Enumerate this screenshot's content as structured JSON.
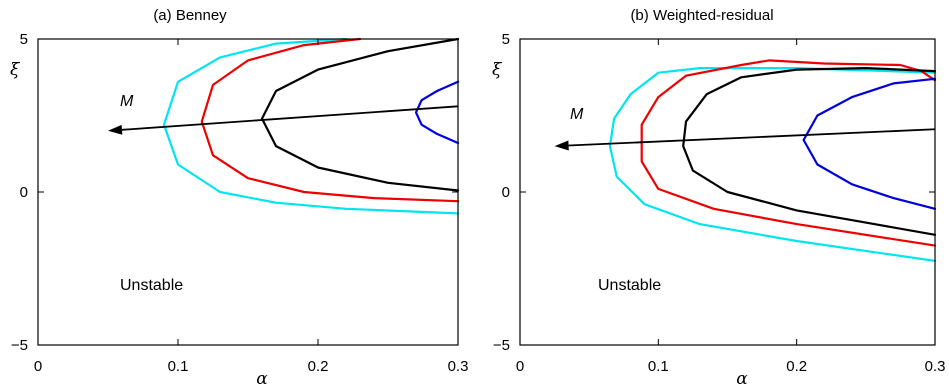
{
  "chart_data": [
    {
      "panel": "a",
      "type": "line",
      "title": "(a) Benney",
      "xlabel": "α",
      "ylabel": "ξ",
      "xlim": [
        0,
        0.3
      ],
      "ylim": [
        -5,
        5
      ],
      "xticks": [
        0,
        0.1,
        0.2,
        0.3
      ],
      "xtick_labels": [
        "0",
        "0.1",
        "0.2",
        "0.3"
      ],
      "yticks": [
        -5,
        0,
        5
      ],
      "ytick_labels": [
        "−5",
        "0",
        "5"
      ],
      "grid": false,
      "region_label": "Unstable",
      "arrow": {
        "label": "M",
        "from": [
          0.3,
          2.8
        ],
        "to": [
          0.05,
          2.0
        ]
      },
      "series": [
        {
          "color": "#00e5ee",
          "points": [
            [
              0.22,
              5.0
            ],
            [
              0.17,
              4.85
            ],
            [
              0.13,
              4.4
            ],
            [
              0.1,
              3.6
            ],
            [
              0.09,
              2.2
            ],
            [
              0.1,
              0.9
            ],
            [
              0.13,
              0.0
            ],
            [
              0.17,
              -0.35
            ],
            [
              0.22,
              -0.55
            ],
            [
              0.3,
              -0.7
            ]
          ]
        },
        {
          "color": "#ee0000",
          "points": [
            [
              0.23,
              5.0
            ],
            [
              0.19,
              4.8
            ],
            [
              0.15,
              4.3
            ],
            [
              0.125,
              3.5
            ],
            [
              0.117,
              2.3
            ],
            [
              0.125,
              1.2
            ],
            [
              0.15,
              0.45
            ],
            [
              0.19,
              0.0
            ],
            [
              0.24,
              -0.2
            ],
            [
              0.3,
              -0.3
            ]
          ]
        },
        {
          "color": "#000000",
          "points": [
            [
              0.3,
              5.0
            ],
            [
              0.25,
              4.6
            ],
            [
              0.2,
              4.0
            ],
            [
              0.17,
              3.3
            ],
            [
              0.16,
              2.4
            ],
            [
              0.17,
              1.5
            ],
            [
              0.2,
              0.8
            ],
            [
              0.25,
              0.3
            ],
            [
              0.3,
              0.05
            ]
          ]
        },
        {
          "color": "#0000dd",
          "points": [
            [
              0.3,
              3.6
            ],
            [
              0.285,
              3.3
            ],
            [
              0.274,
              3.0
            ],
            [
              0.27,
              2.6
            ],
            [
              0.274,
              2.2
            ],
            [
              0.285,
              1.9
            ],
            [
              0.3,
              1.6
            ]
          ]
        }
      ]
    },
    {
      "panel": "b",
      "type": "line",
      "title": "(b) Weighted-residual",
      "xlabel": "α",
      "ylabel": "ξ",
      "xlim": [
        0,
        0.3
      ],
      "ylim": [
        -5,
        5
      ],
      "xticks": [
        0,
        0.1,
        0.2,
        0.3
      ],
      "xtick_labels": [
        "0",
        "0.1",
        "0.2",
        "0.3"
      ],
      "yticks": [
        -5,
        0,
        5
      ],
      "ytick_labels": [
        "−5",
        "0",
        "5"
      ],
      "grid": false,
      "region_label": "Unstable",
      "arrow": {
        "label": "M",
        "from": [
          0.3,
          2.05
        ],
        "to": [
          0.025,
          1.5
        ]
      },
      "series": [
        {
          "color": "#00e5ee",
          "points": [
            [
              0.3,
              3.9
            ],
            [
              0.2,
              4.05
            ],
            [
              0.13,
              4.05
            ],
            [
              0.1,
              3.9
            ],
            [
              0.08,
              3.2
            ],
            [
              0.068,
              2.4
            ],
            [
              0.065,
              1.5
            ],
            [
              0.07,
              0.5
            ],
            [
              0.09,
              -0.4
            ],
            [
              0.13,
              -1.05
            ],
            [
              0.2,
              -1.6
            ],
            [
              0.3,
              -2.25
            ]
          ]
        },
        {
          "color": "#ee0000",
          "points": [
            [
              0.3,
              3.65
            ],
            [
              0.29,
              3.95
            ],
            [
              0.275,
              4.15
            ],
            [
              0.22,
              4.2
            ],
            [
              0.18,
              4.3
            ],
            [
              0.16,
              4.15
            ],
            [
              0.12,
              3.8
            ],
            [
              0.1,
              3.1
            ],
            [
              0.088,
              2.2
            ],
            [
              0.088,
              1.0
            ],
            [
              0.1,
              0.1
            ],
            [
              0.14,
              -0.55
            ],
            [
              0.2,
              -1.05
            ],
            [
              0.3,
              -1.75
            ]
          ]
        },
        {
          "color": "#000000",
          "points": [
            [
              0.3,
              3.95
            ],
            [
              0.25,
              4.05
            ],
            [
              0.2,
              4.0
            ],
            [
              0.16,
              3.75
            ],
            [
              0.135,
              3.2
            ],
            [
              0.12,
              2.3
            ],
            [
              0.118,
              1.5
            ],
            [
              0.125,
              0.7
            ],
            [
              0.15,
              0.0
            ],
            [
              0.2,
              -0.6
            ],
            [
              0.25,
              -1.0
            ],
            [
              0.3,
              -1.4
            ]
          ]
        },
        {
          "color": "#0000dd",
          "points": [
            [
              0.3,
              3.7
            ],
            [
              0.27,
              3.55
            ],
            [
              0.24,
              3.1
            ],
            [
              0.215,
              2.5
            ],
            [
              0.205,
              1.7
            ],
            [
              0.215,
              0.9
            ],
            [
              0.24,
              0.25
            ],
            [
              0.27,
              -0.2
            ],
            [
              0.3,
              -0.55
            ]
          ]
        }
      ]
    }
  ]
}
